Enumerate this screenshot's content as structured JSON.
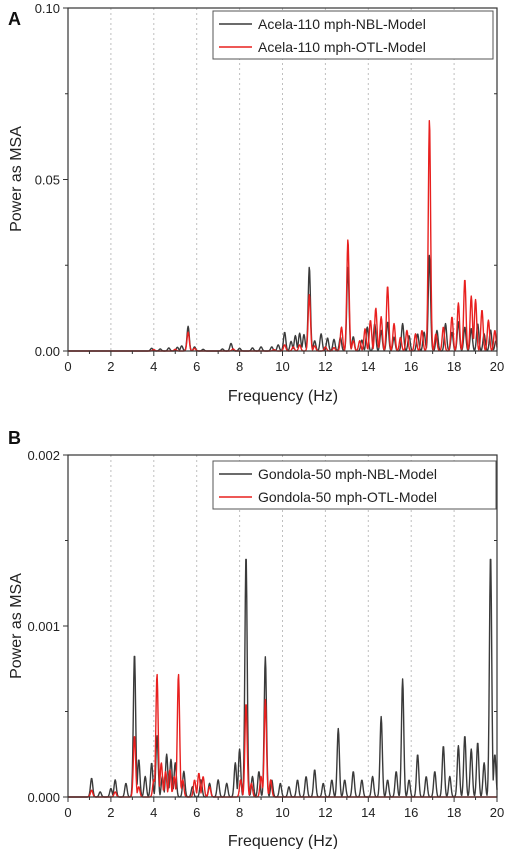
{
  "colors": {
    "NBL": "#3a3a3a",
    "OTL": "#e8201f"
  },
  "chart_data": [
    {
      "type": "line",
      "panel": "A",
      "title": "",
      "xlabel": "Frequency (Hz)",
      "ylabel": "Power as MSA",
      "xlim": [
        0,
        20
      ],
      "ylim": [
        0,
        0.1
      ],
      "xticks": [
        0,
        2,
        4,
        6,
        8,
        10,
        12,
        14,
        16,
        18,
        20
      ],
      "xtick_labels": [
        "0",
        "2",
        "4",
        "6",
        "8",
        "10",
        "12",
        "14",
        "16",
        "18",
        "20"
      ],
      "yticks": [
        0,
        0.05,
        0.1
      ],
      "ytick_labels": [
        "0.00",
        "0.05",
        "0.10"
      ],
      "grid": true,
      "legend_position": "top-right",
      "series": [
        {
          "name": "Acela-110 mph-NBL-Model",
          "color_key": "NBL",
          "peaks": [
            [
              3.9,
              0.0008
            ],
            [
              4.3,
              0.0006
            ],
            [
              4.7,
              0.0009
            ],
            [
              5.1,
              0.0011
            ],
            [
              5.3,
              0.0015
            ],
            [
              5.6,
              0.0072
            ],
            [
              5.9,
              0.0012
            ],
            [
              6.3,
              0.0005
            ],
            [
              7.2,
              0.0006
            ],
            [
              7.6,
              0.0022
            ],
            [
              8.0,
              0.0008
            ],
            [
              8.6,
              0.0009
            ],
            [
              9.0,
              0.0012
            ],
            [
              9.5,
              0.0012
            ],
            [
              9.8,
              0.0018
            ],
            [
              10.1,
              0.0055
            ],
            [
              10.4,
              0.0028
            ],
            [
              10.6,
              0.0045
            ],
            [
              10.8,
              0.0052
            ],
            [
              11.0,
              0.0048
            ],
            [
              11.25,
              0.0245
            ],
            [
              11.5,
              0.003
            ],
            [
              11.8,
              0.005
            ],
            [
              12.1,
              0.0038
            ],
            [
              12.4,
              0.0034
            ],
            [
              12.7,
              0.004
            ],
            [
              13.05,
              0.0245
            ],
            [
              13.3,
              0.0042
            ],
            [
              13.7,
              0.0032
            ],
            [
              13.95,
              0.007
            ],
            [
              14.3,
              0.008
            ],
            [
              14.6,
              0.006
            ],
            [
              14.9,
              0.0085
            ],
            [
              15.2,
              0.004
            ],
            [
              15.6,
              0.008
            ],
            [
              15.9,
              0.0045
            ],
            [
              16.3,
              0.005
            ],
            [
              16.6,
              0.0055
            ],
            [
              16.85,
              0.028
            ],
            [
              17.2,
              0.006
            ],
            [
              17.6,
              0.008
            ],
            [
              17.9,
              0.0055
            ],
            [
              18.2,
              0.0085
            ],
            [
              18.5,
              0.007
            ],
            [
              18.8,
              0.0065
            ],
            [
              19.1,
              0.008
            ],
            [
              19.4,
              0.005
            ],
            [
              19.7,
              0.0062
            ],
            [
              19.95,
              0.003
            ]
          ]
        },
        {
          "name": "Acela-110 mph-OTL-Model",
          "color_key": "OTL",
          "peaks": [
            [
              4.0,
              0.0004
            ],
            [
              5.0,
              0.0005
            ],
            [
              5.6,
              0.0055
            ],
            [
              5.9,
              0.0008
            ],
            [
              7.7,
              0.0006
            ],
            [
              9.6,
              0.0004
            ],
            [
              10.1,
              0.0018
            ],
            [
              10.5,
              0.0012
            ],
            [
              10.8,
              0.0018
            ],
            [
              11.25,
              0.0165
            ],
            [
              11.5,
              0.0015
            ],
            [
              12.0,
              0.0012
            ],
            [
              12.4,
              0.001
            ],
            [
              12.75,
              0.007
            ],
            [
              13.05,
              0.0325
            ],
            [
              13.3,
              0.003
            ],
            [
              13.6,
              0.003
            ],
            [
              13.85,
              0.0065
            ],
            [
              14.1,
              0.009
            ],
            [
              14.35,
              0.0125
            ],
            [
              14.6,
              0.01
            ],
            [
              14.9,
              0.019
            ],
            [
              15.2,
              0.008
            ],
            [
              15.5,
              0.004
            ],
            [
              15.8,
              0.006
            ],
            [
              16.2,
              0.005
            ],
            [
              16.5,
              0.006
            ],
            [
              16.85,
              0.0675
            ],
            [
              17.15,
              0.005
            ],
            [
              17.5,
              0.007
            ],
            [
              17.9,
              0.01
            ],
            [
              18.2,
              0.014
            ],
            [
              18.5,
              0.021
            ],
            [
              18.8,
              0.016
            ],
            [
              19.0,
              0.015
            ],
            [
              19.3,
              0.012
            ],
            [
              19.6,
              0.009
            ],
            [
              19.9,
              0.006
            ]
          ]
        }
      ]
    },
    {
      "type": "line",
      "panel": "B",
      "title": "",
      "xlabel": "Frequency (Hz)",
      "ylabel": "Power as MSA",
      "xlim": [
        0,
        20
      ],
      "ylim": [
        0,
        0.002
      ],
      "xticks": [
        0,
        2,
        4,
        6,
        8,
        10,
        12,
        14,
        16,
        18,
        20
      ],
      "xtick_labels": [
        "0",
        "2",
        "4",
        "6",
        "8",
        "10",
        "12",
        "14",
        "16",
        "18",
        "20"
      ],
      "yticks": [
        0,
        0.001,
        0.002
      ],
      "ytick_labels": [
        "0.000",
        "0.001",
        "0.002"
      ],
      "grid": true,
      "legend_position": "top-right",
      "series": [
        {
          "name": "Gondola-50 mph-NBL-Model",
          "color_key": "NBL",
          "peaks": [
            [
              1.1,
              0.00011
            ],
            [
              1.5,
              3e-05
            ],
            [
              2.0,
              5e-05
            ],
            [
              2.2,
              0.0001
            ],
            [
              2.7,
              8e-05
            ],
            [
              3.1,
              0.00084
            ],
            [
              3.3,
              0.00022
            ],
            [
              3.6,
              0.00012
            ],
            [
              3.9,
              0.0002
            ],
            [
              4.15,
              0.00036
            ],
            [
              4.4,
              0.00012
            ],
            [
              4.6,
              0.00025
            ],
            [
              4.8,
              0.00022
            ],
            [
              5.0,
              0.0002
            ],
            [
              5.4,
              0.00015
            ],
            [
              5.8,
              6e-05
            ],
            [
              6.2,
              0.0001
            ],
            [
              6.6,
              8e-05
            ],
            [
              7.0,
              0.0001
            ],
            [
              7.4,
              8e-05
            ],
            [
              7.8,
              0.0002
            ],
            [
              8.0,
              0.00028
            ],
            [
              8.3,
              0.00142
            ],
            [
              8.6,
              0.00012
            ],
            [
              8.9,
              0.00015
            ],
            [
              9.2,
              0.00082
            ],
            [
              9.5,
              0.0001
            ],
            [
              9.9,
              8e-05
            ],
            [
              10.3,
              6e-05
            ],
            [
              10.7,
              0.0001
            ],
            [
              11.1,
              0.00012
            ],
            [
              11.5,
              0.00016
            ],
            [
              11.9,
              8e-05
            ],
            [
              12.3,
              0.0001
            ],
            [
              12.6,
              0.0004
            ],
            [
              12.9,
              0.0001
            ],
            [
              13.3,
              0.00015
            ],
            [
              13.7,
              0.0001
            ],
            [
              14.2,
              0.00012
            ],
            [
              14.6,
              0.00047
            ],
            [
              14.9,
              0.0001
            ],
            [
              15.3,
              0.00015
            ],
            [
              15.6,
              0.00069
            ],
            [
              15.9,
              0.0001
            ],
            [
              16.3,
              0.00025
            ],
            [
              16.7,
              0.00012
            ],
            [
              17.1,
              0.00015
            ],
            [
              17.5,
              0.0003
            ],
            [
              17.8,
              0.00012
            ],
            [
              18.2,
              0.0003
            ],
            [
              18.5,
              0.00036
            ],
            [
              18.8,
              0.00028
            ],
            [
              19.1,
              0.00032
            ],
            [
              19.4,
              0.0002
            ],
            [
              19.7,
              0.00142
            ],
            [
              19.9,
              0.00025
            ]
          ]
        },
        {
          "name": "Gondola-50 mph-OTL-Model",
          "color_key": "OTL",
          "peaks": [
            [
              1.1,
              4e-05
            ],
            [
              2.2,
              3e-05
            ],
            [
              3.1,
              0.00036
            ],
            [
              3.3,
              6e-05
            ],
            [
              4.0,
              0.0001
            ],
            [
              4.15,
              0.00072
            ],
            [
              4.35,
              0.0002
            ],
            [
              4.55,
              0.00015
            ],
            [
              4.75,
              0.00016
            ],
            [
              4.95,
              0.00012
            ],
            [
              5.15,
              0.00072
            ],
            [
              5.35,
              0.0001
            ],
            [
              5.9,
              0.0001
            ],
            [
              6.1,
              0.00014
            ],
            [
              6.3,
              0.00012
            ],
            [
              6.6,
              6e-05
            ],
            [
              8.05,
              0.0001
            ],
            [
              8.3,
              0.00055
            ],
            [
              8.55,
              8e-05
            ],
            [
              9.0,
              0.00012
            ],
            [
              9.2,
              0.00057
            ],
            [
              9.45,
              0.0001
            ]
          ]
        }
      ]
    }
  ]
}
